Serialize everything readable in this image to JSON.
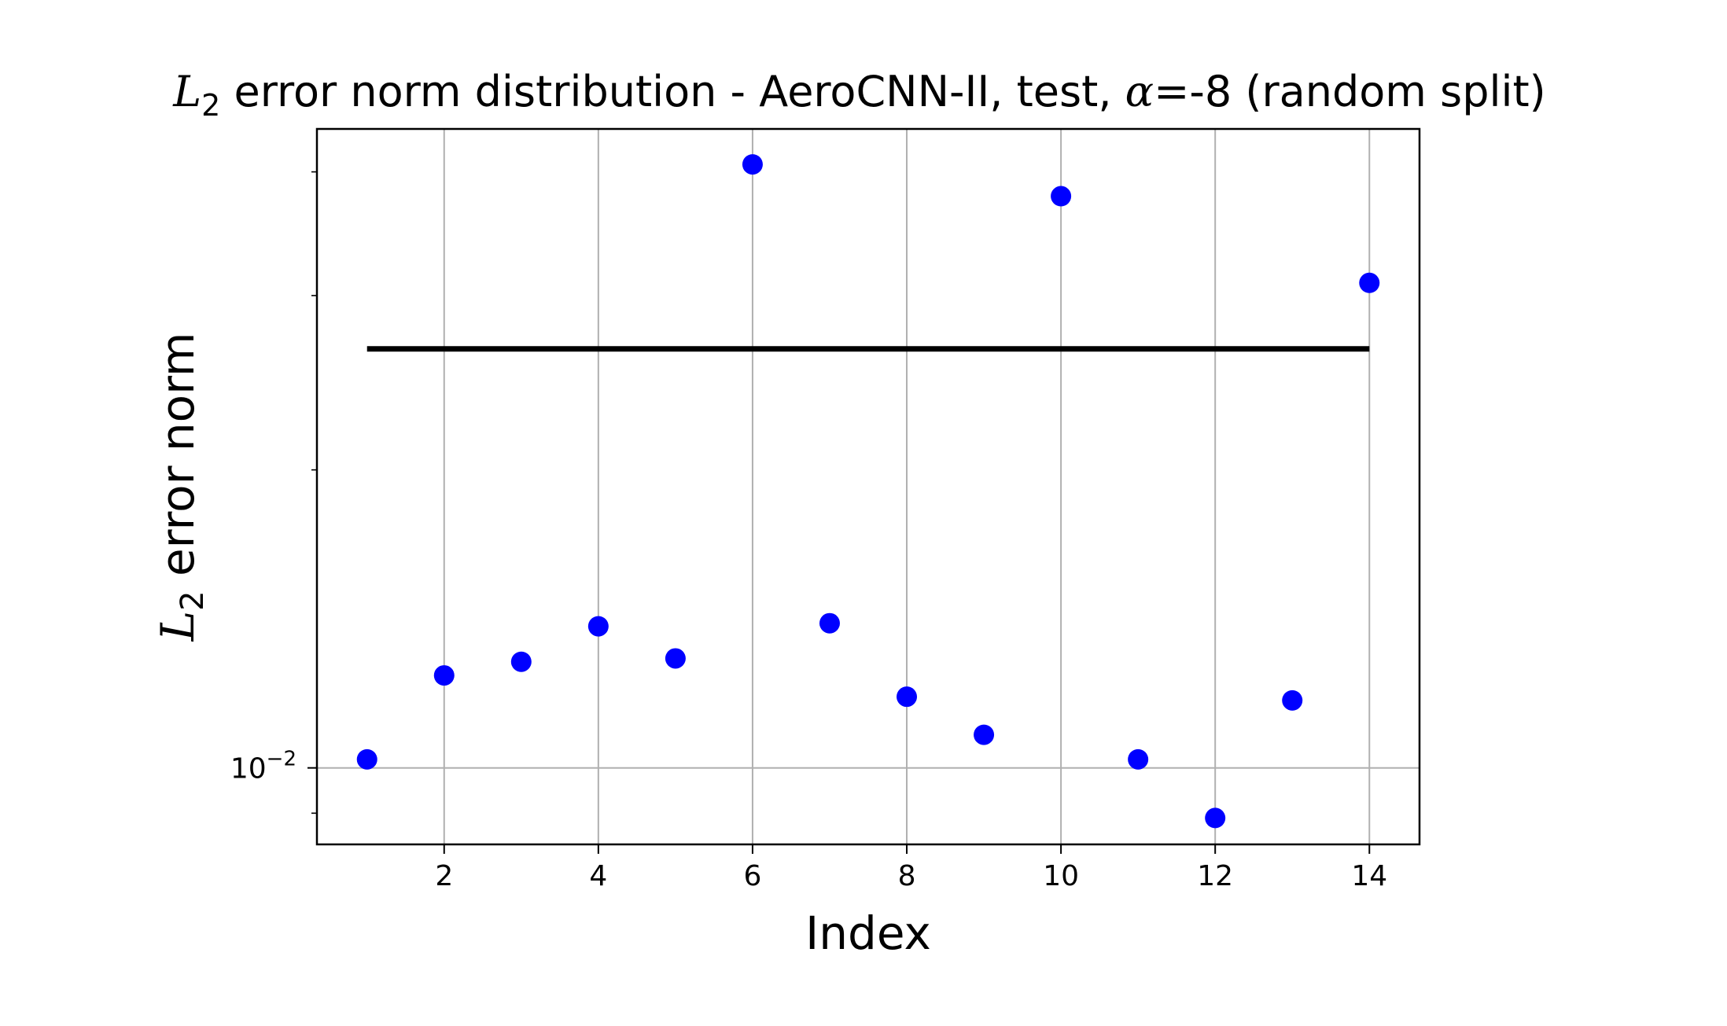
{
  "chart_data": {
    "type": "scatter",
    "title": {
      "prefix_symbol": "L",
      "prefix_subscript": "2",
      "text_before_alpha": " error norm distribution - AeroCNN-II, test, ",
      "alpha_symbol": "α",
      "text_after_alpha": "=-8 (random split)"
    },
    "xlabel": "Index",
    "ylabel": {
      "symbol": "L",
      "subscript": "2",
      "text": " error norm"
    },
    "x_scale": "linear",
    "y_scale": "log",
    "xlim": [
      0.35,
      14.65
    ],
    "ylim": [
      0.00837,
      0.0442
    ],
    "x_ticks": [
      2,
      4,
      6,
      8,
      10,
      12,
      14
    ],
    "x_tick_labels": [
      "2",
      "4",
      "6",
      "8",
      "10",
      "12",
      "14"
    ],
    "y_major_ticks": [
      0.01
    ],
    "y_major_tick_labels": [
      {
        "base": "10",
        "exponent": "−2"
      }
    ],
    "y_minor_ticks": [
      0.009,
      0.02,
      0.03,
      0.04
    ],
    "grid": true,
    "marker_color": "#0000ff",
    "line_color": "#000000",
    "grid_color": "#b0b0b0",
    "points": {
      "x": [
        1,
        2,
        3,
        4,
        5,
        6,
        7,
        8,
        9,
        10,
        11,
        12,
        13,
        14
      ],
      "y": [
        0.0102,
        0.0124,
        0.0128,
        0.0139,
        0.0129,
        0.0407,
        0.014,
        0.0118,
        0.0108,
        0.0378,
        0.0102,
        0.0089,
        0.0117,
        0.0309
      ]
    },
    "reference_line": {
      "x": [
        1,
        14
      ],
      "y": [
        0.0265,
        0.0265
      ]
    }
  }
}
